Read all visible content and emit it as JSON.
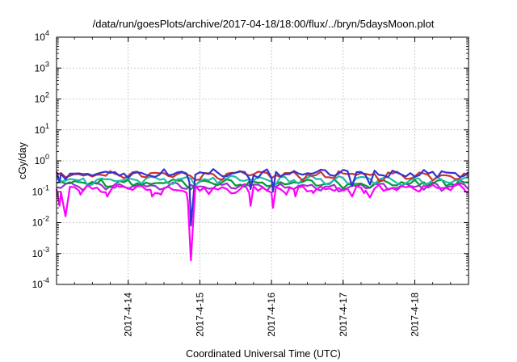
{
  "chart_data": {
    "type": "line",
    "title": "/data/run/goesPlots/archive/2017-04-18/18:00/flux/../bryn/5daysMoon.plot",
    "xlabel": "Coordinated Universal Time (UTC)",
    "ylabel": "cGy/day",
    "y_scale": "log",
    "ylim": [
      0.0001,
      10000
    ],
    "y_ticks": [
      {
        "base": "10",
        "exp": "-4"
      },
      {
        "base": "10",
        "exp": "-3"
      },
      {
        "base": "10",
        "exp": "-2"
      },
      {
        "base": "10",
        "exp": "-1"
      },
      {
        "base": "10",
        "exp": "0"
      },
      {
        "base": "10",
        "exp": "1"
      },
      {
        "base": "10",
        "exp": "2"
      },
      {
        "base": "10",
        "exp": "3"
      },
      {
        "base": "10",
        "exp": "4"
      }
    ],
    "xlim": [
      "2017-04-13 00:00",
      "2017-04-18 18:00"
    ],
    "x_ticks": [
      "2017-4-14",
      "2017-4-15",
      "2017-4-16",
      "2017-4-17",
      "2017-4-18"
    ],
    "grid": true,
    "legend": "none",
    "series": [
      {
        "color": "#3333cc",
        "base": 0.4,
        "dips": [
          {
            "x": "2017-04-13 01:00",
            "y": 0.2
          },
          {
            "x": "2017-04-13 03:00",
            "y": 0.25
          },
          {
            "x": "2017-04-14 20:30",
            "y": 0.2
          },
          {
            "x": "2017-04-14 21:00",
            "y": 0.008
          },
          {
            "x": "2017-04-15 17:00",
            "y": 0.12
          },
          {
            "x": "2017-04-16 00:30",
            "y": 0.1
          },
          {
            "x": "2017-04-17 03:00",
            "y": 0.15
          },
          {
            "x": "2017-04-17 09:00",
            "y": 0.17
          }
        ]
      },
      {
        "color": "#cc3333",
        "base": 0.35,
        "dips": []
      },
      {
        "color": "#22bbaa",
        "base": 0.24,
        "dips": []
      },
      {
        "color": "#009933",
        "base": 0.19,
        "dips": []
      },
      {
        "color": "#9933cc",
        "base": 0.15,
        "dips": []
      },
      {
        "color": "#ff00ff",
        "base": 0.13,
        "dips": [
          {
            "x": "2017-04-13 01:00",
            "y": 0.035
          },
          {
            "x": "2017-04-13 03:00",
            "y": 0.016
          },
          {
            "x": "2017-04-13 08:00",
            "y": 0.08
          },
          {
            "x": "2017-04-13 17:00",
            "y": 0.07
          },
          {
            "x": "2017-04-14 08:00",
            "y": 0.07
          },
          {
            "x": "2017-04-14 11:00",
            "y": 0.08
          },
          {
            "x": "2017-04-14 20:00",
            "y": 0.05
          },
          {
            "x": "2017-04-14 21:00",
            "y": 0.0006
          },
          {
            "x": "2017-04-15 17:00",
            "y": 0.035
          },
          {
            "x": "2017-04-16 00:30",
            "y": 0.03
          },
          {
            "x": "2017-04-16 05:00",
            "y": 0.08
          },
          {
            "x": "2017-04-16 08:00",
            "y": 0.07
          },
          {
            "x": "2017-04-16 14:00",
            "y": 0.09
          },
          {
            "x": "2017-04-17 03:00",
            "y": 0.07
          },
          {
            "x": "2017-04-17 07:00",
            "y": 0.09
          },
          {
            "x": "2017-04-17 09:00",
            "y": 0.065
          },
          {
            "x": "2017-04-18 17:00",
            "y": 0.1
          }
        ]
      }
    ]
  }
}
